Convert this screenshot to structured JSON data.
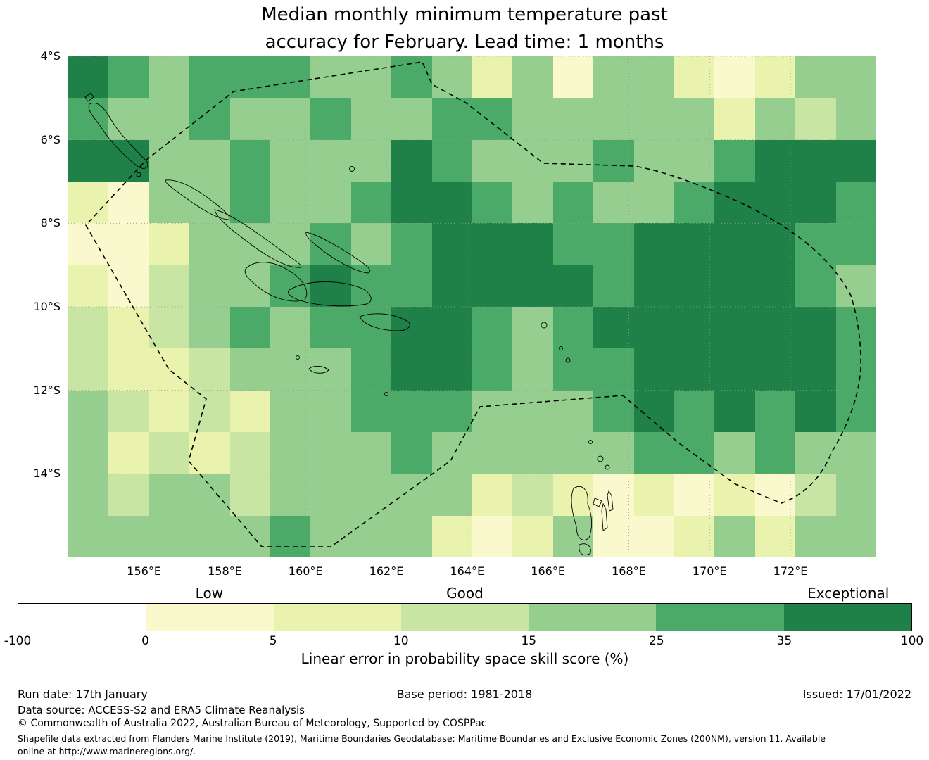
{
  "title": {
    "line1": "Median monthly minimum temperature past",
    "line2": "accuracy for February. Lead time: 1 months"
  },
  "chart_data": {
    "type": "heatmap",
    "title": "Median monthly minimum temperature past accuracy for February. Lead time: 1 months",
    "xlabel": "",
    "ylabel": "",
    "x_tick_labels": [
      "156°E",
      "158°E",
      "160°E",
      "162°E",
      "164°E",
      "166°E",
      "168°E",
      "170°E",
      "172°E"
    ],
    "y_tick_labels": [
      "4°S",
      "6°S",
      "8°S",
      "10°S",
      "12°S",
      "14°S"
    ],
    "lon_range": [
      154.1,
      174.1
    ],
    "lat_range": [
      -16,
      -4
    ],
    "grid_cols": 20,
    "grid_rows": 12,
    "value_units": "Linear error in probability space skill score (%)",
    "bin_edges": [
      -100,
      0,
      5,
      10,
      15,
      25,
      35,
      100
    ],
    "bin_colors": [
      "#ffffff",
      "#f9f9cd",
      "#eaf3ae",
      "#c8e5a3",
      "#96ce90",
      "#4caa68",
      "#1f8048"
    ],
    "bin_quality": [
      "",
      "Low",
      "",
      "Good",
      "",
      "",
      "Exceptional"
    ],
    "grid_bins": [
      "65455544542414421244",
      "54454454455444442434",
      "66445444654445445666",
      "21445445665454456665",
      "11244454566655666655",
      "21344565566665666654",
      "32345455665456666665",
      "32234445665455666665",
      "43232445554445656565",
      "42323444544444554544",
      "43443444442321212134",
      "44444544421241124244"
    ],
    "grid_on": true,
    "legend_position": "bottom-colorbar"
  },
  "colorbar": {
    "quality_labels": [
      "Low",
      "Good",
      "Exceptional"
    ],
    "tick_labels": [
      "-100",
      "0",
      "5",
      "10",
      "15",
      "25",
      "35",
      "100"
    ],
    "label": "Linear error in probability space skill score (%)"
  },
  "footer": {
    "run_date": "Run date: 17th January",
    "base_period": "Base period: 1981-2018",
    "issued": "Issued: 17/01/2022",
    "data_source": "Data source: ACCESS-S2 and ERA5 Climate Reanalysis",
    "copyright": "© Commonwealth of Australia 2022, Australian Bureau of Meteorology, Supported by COSPPac",
    "shapefile_note": "Shapefile data extracted from Flanders Marine Institute (2019), Maritime Boundaries Geodatabase: Maritime Boundaries and Exclusive Economic Zones (200NM), version 11. Available online at http://www.marineregions.org/."
  }
}
